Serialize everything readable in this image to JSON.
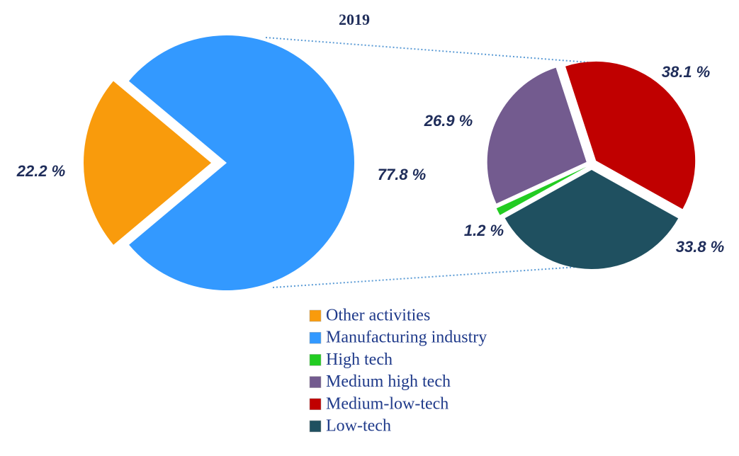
{
  "chart_data": [
    {
      "type": "pie",
      "title": "2019",
      "categories": [
        "Other activities",
        "Manufacturing industry"
      ],
      "values": [
        22.2,
        77.8
      ],
      "value_labels": [
        "22.2 %",
        "77.8 %"
      ],
      "colors": [
        "#f99b0c",
        "#3399ff"
      ]
    },
    {
      "type": "pie",
      "categories": [
        "High tech",
        "Medium high tech",
        "Medium-low-tech",
        "Low-tech"
      ],
      "values": [
        1.2,
        26.9,
        38.1,
        33.8
      ],
      "value_labels": [
        "1.2 %",
        "26.9 %",
        "38.1 %",
        "33.8 %"
      ],
      "colors": [
        "#22cc22",
        "#735b8f",
        "#c00000",
        "#1f5060"
      ]
    }
  ]
}
